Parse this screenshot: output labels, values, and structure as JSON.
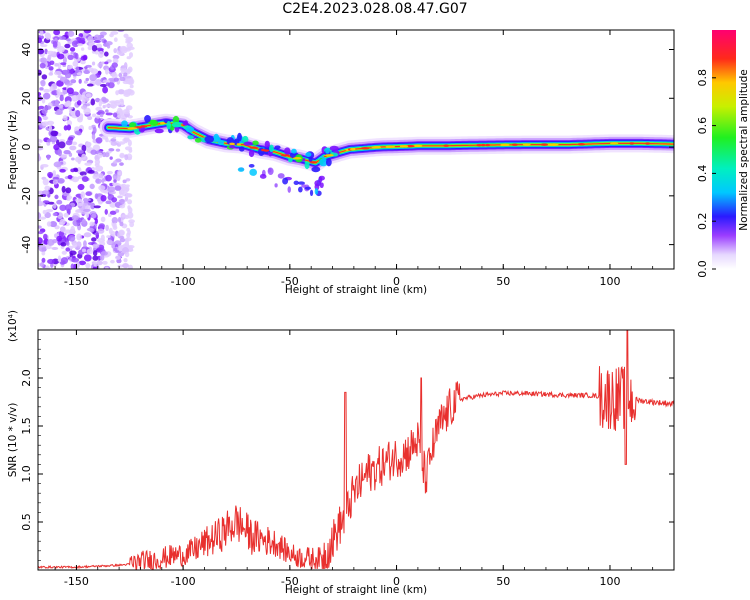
{
  "title": "C2E4.2023.028.08.47.G07",
  "colors": {
    "snr_line": "#e8302e",
    "ridge_core": "#ff2020"
  },
  "chart_data": [
    {
      "type": "heatmap",
      "title": "C2E4.2023.028.08.47.G07",
      "xlabel": "Height of straight line (km)",
      "ylabel": "Frequency (Hz)",
      "xlim": [
        -168,
        130
      ],
      "ylim": [
        -50,
        48
      ],
      "xticks": [
        "-150",
        "-100",
        "-50",
        "0",
        "50",
        "100"
      ],
      "xtick_values": [
        -150,
        -100,
        -50,
        0,
        50,
        100
      ],
      "yticks": [
        "-40",
        "-20",
        "0",
        "20",
        "40"
      ],
      "ytick_values": [
        -40,
        -20,
        0,
        20,
        40
      ],
      "ridge": {
        "x": [
          -135,
          -125,
          -115,
          -108,
          -100,
          -95,
          -88,
          -80,
          -72,
          -64,
          -57,
          -50,
          -44,
          -38,
          -34,
          -28,
          -22,
          -15,
          -8,
          0,
          10,
          20,
          40,
          60,
          80,
          100,
          115,
          130
        ],
        "y": [
          8,
          7.5,
          9,
          10,
          9,
          6,
          3,
          1.5,
          1,
          -1,
          -2,
          -4,
          -5,
          -6.5,
          -4,
          -2.5,
          -1,
          -0.5,
          0,
          0.2,
          0.5,
          0.5,
          0.8,
          1,
          1,
          1.5,
          1.5,
          1.2
        ]
      },
      "noise_region": {
        "x_range": [
          -168,
          -124
        ]
      },
      "colorbar": {
        "label": "Normalized spectral amplitude",
        "range": [
          0,
          1
        ],
        "ticks": [
          "0.0",
          "0.2",
          "0.4",
          "0.6",
          "0.8"
        ],
        "tick_values": [
          0,
          0.2,
          0.4,
          0.6,
          0.8
        ]
      }
    },
    {
      "type": "line",
      "xlabel": "Height of straight line (km)",
      "ylabel": "SNR (10 * v/v)",
      "y_multiplier": "(x10⁴)",
      "xlim": [
        -168,
        130
      ],
      "ylim": [
        0,
        2.5
      ],
      "xticks": [
        "-150",
        "-100",
        "-50",
        "0",
        "50",
        "100"
      ],
      "xtick_values": [
        -150,
        -100,
        -50,
        0,
        50,
        100
      ],
      "yticks": [
        "0.5",
        "1.0",
        "1.5",
        "2.0"
      ],
      "ytick_values": [
        0.5,
        1.0,
        1.5,
        2.0
      ],
      "series": [
        {
          "x": [
            -168,
            -150,
            -140,
            -130,
            -125,
            -120,
            -115,
            -110,
            -105,
            -100,
            -97,
            -94,
            -90,
            -86,
            -82,
            -78,
            -75,
            -72,
            -68,
            -64,
            -60,
            -56,
            -52,
            -48,
            -44,
            -40,
            -35,
            -30,
            -27,
            -24,
            -22,
            -20,
            -17,
            -14,
            -10,
            -6,
            -3,
            0,
            3,
            6,
            8,
            10,
            12,
            14,
            16,
            18,
            20,
            23,
            26,
            30,
            35,
            40,
            45,
            50,
            60,
            70,
            80,
            90,
            95,
            100,
            102,
            104,
            106,
            108,
            110,
            113,
            116,
            120,
            125,
            130
          ],
          "y": [
            0.03,
            0.03,
            0.04,
            0.05,
            0.06,
            0.08,
            0.1,
            0.12,
            0.15,
            0.16,
            0.18,
            0.22,
            0.28,
            0.32,
            0.38,
            0.45,
            0.5,
            0.45,
            0.35,
            0.33,
            0.3,
            0.28,
            0.2,
            0.15,
            0.13,
            0.12,
            0.12,
            0.3,
            0.45,
            0.55,
            0.7,
            0.8,
            0.9,
            1.0,
            1.05,
            1.1,
            1.15,
            1.18,
            1.2,
            1.25,
            1.3,
            1.35,
            1.1,
            0.95,
            1.2,
            1.35,
            1.5,
            1.6,
            1.72,
            1.78,
            1.8,
            1.82,
            1.83,
            1.84,
            1.84,
            1.83,
            1.82,
            1.82,
            1.81,
            1.8,
            1.8,
            1.78,
            1.8,
            1.78,
            1.78,
            1.77,
            1.76,
            1.75,
            1.74,
            1.73
          ]
        }
      ]
    }
  ]
}
